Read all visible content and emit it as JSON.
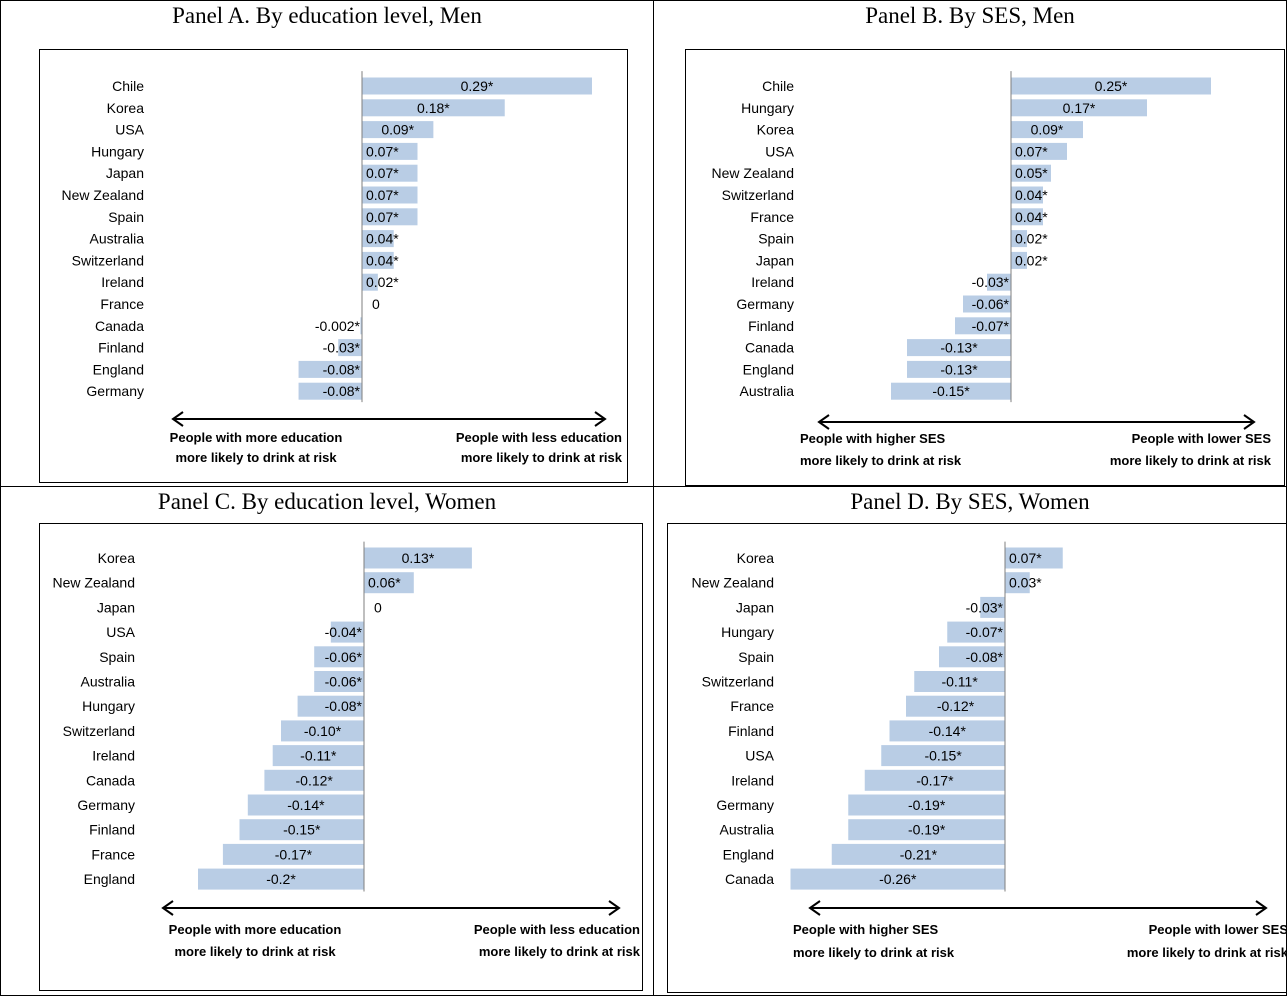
{
  "chart_data": [
    {
      "type": "bar",
      "orientation": "horizontal",
      "title": "Panel A. By education level, Men",
      "categories": [
        "Chile",
        "Korea",
        "USA",
        "Hungary",
        "Japan",
        "New Zealand",
        "Spain",
        "Australia",
        "Switzerland",
        "Ireland",
        "France",
        "Canada",
        "Finland",
        "England",
        "Germany"
      ],
      "values": [
        0.29,
        0.18,
        0.09,
        0.07,
        0.07,
        0.07,
        0.07,
        0.04,
        0.04,
        0.02,
        0,
        -0.002,
        -0.03,
        -0.08,
        -0.08
      ],
      "labels": [
        "0.29*",
        "0.18*",
        "0.09*",
        "0.07*",
        "0.07*",
        "0.07*",
        "0.07*",
        "0.04*",
        "0.04*",
        "0.02*",
        "0",
        "-0.002*",
        "-0.03*",
        "-0.08*",
        "-0.08*"
      ],
      "xlim": [
        -0.3,
        0.3
      ],
      "bar_color": "#b9cde5",
      "left_note": [
        "People with more education",
        "more likely to drink at risk"
      ],
      "right_note": [
        "People with less education",
        "more likely to drink at risk"
      ]
    },
    {
      "type": "bar",
      "orientation": "horizontal",
      "title": "Panel B. By SES, Men",
      "categories": [
        "Chile",
        "Hungary",
        "Korea",
        "USA",
        "New Zealand",
        "Switzerland",
        "France",
        "Spain",
        "Japan",
        "Ireland",
        "Germany",
        "Finland",
        "Canada",
        "England",
        "Australia"
      ],
      "values": [
        0.25,
        0.17,
        0.09,
        0.07,
        0.05,
        0.04,
        0.04,
        0.02,
        0.02,
        -0.03,
        -0.06,
        -0.07,
        -0.13,
        -0.13,
        -0.15
      ],
      "labels": [
        "0.25*",
        "0.17*",
        "0.09*",
        "0.07*",
        "0.05*",
        "0.04*",
        "0.04*",
        "0.02*",
        "0.02*",
        "-0.03*",
        "-0.06*",
        "-0.07*",
        "-0.13*",
        "-0.13*",
        "-0.15*"
      ],
      "xlim": [
        -0.15,
        0.35
      ],
      "bar_color": "#b9cde5",
      "left_note": [
        "People with higher SES",
        "more likely to drink at risk"
      ],
      "right_note": [
        "People with lower SES",
        "more likely to drink at risk"
      ]
    },
    {
      "type": "bar",
      "orientation": "horizontal",
      "title": "Panel C. By education level, Women",
      "categories": [
        "Korea",
        "New Zealand",
        "Japan",
        "USA",
        "Spain",
        "Australia",
        "Hungary",
        "Switzerland",
        "Ireland",
        "Canada",
        "Germany",
        "Finland",
        "France",
        "England"
      ],
      "values": [
        0.13,
        0.06,
        0,
        -0.04,
        -0.06,
        -0.06,
        -0.08,
        -0.1,
        -0.11,
        -0.12,
        -0.14,
        -0.15,
        -0.17,
        -0.2
      ],
      "labels": [
        "0.13*",
        "0.06*",
        "0",
        "-0.04*",
        "-0.06*",
        "-0.06*",
        "-0.08*",
        "-0.10*",
        "-0.11*",
        "-0.12*",
        "-0.14*",
        "-0.15*",
        "-0.17*",
        "-0.2*"
      ],
      "xlim": [
        -0.25,
        0.3
      ],
      "bar_color": "#b9cde5",
      "left_note": [
        "People with more education",
        "more likely to drink at risk"
      ],
      "right_note": [
        "People with less education",
        "more likely to drink at risk"
      ]
    },
    {
      "type": "bar",
      "orientation": "horizontal",
      "title": "Panel D. By SES, Women",
      "categories": [
        "Korea",
        "New Zealand",
        "Japan",
        "Hungary",
        "Spain",
        "Switzerland",
        "France",
        "Finland",
        "USA",
        "Ireland",
        "Germany",
        "Australia",
        "England",
        "Canada"
      ],
      "values": [
        0.07,
        0.03,
        -0.03,
        -0.07,
        -0.08,
        -0.11,
        -0.12,
        -0.14,
        -0.15,
        -0.17,
        -0.19,
        -0.19,
        -0.21,
        -0.26
      ],
      "labels": [
        "0.07*",
        "0.03*",
        "-0.03*",
        "-0.07*",
        "-0.08*",
        "-0.11*",
        "-0.12*",
        "-0.14*",
        "-0.15*",
        "-0.17*",
        "-0.19*",
        "-0.19*",
        "-0.21*",
        "-0.26*"
      ],
      "xlim": [
        -0.26,
        0.35
      ],
      "bar_color": "#b9cde5",
      "left_note": [
        "People with higher SES",
        "more likely to drink at risk"
      ],
      "right_note": [
        "People with lower SES",
        "more likely to drink at risk"
      ]
    }
  ]
}
